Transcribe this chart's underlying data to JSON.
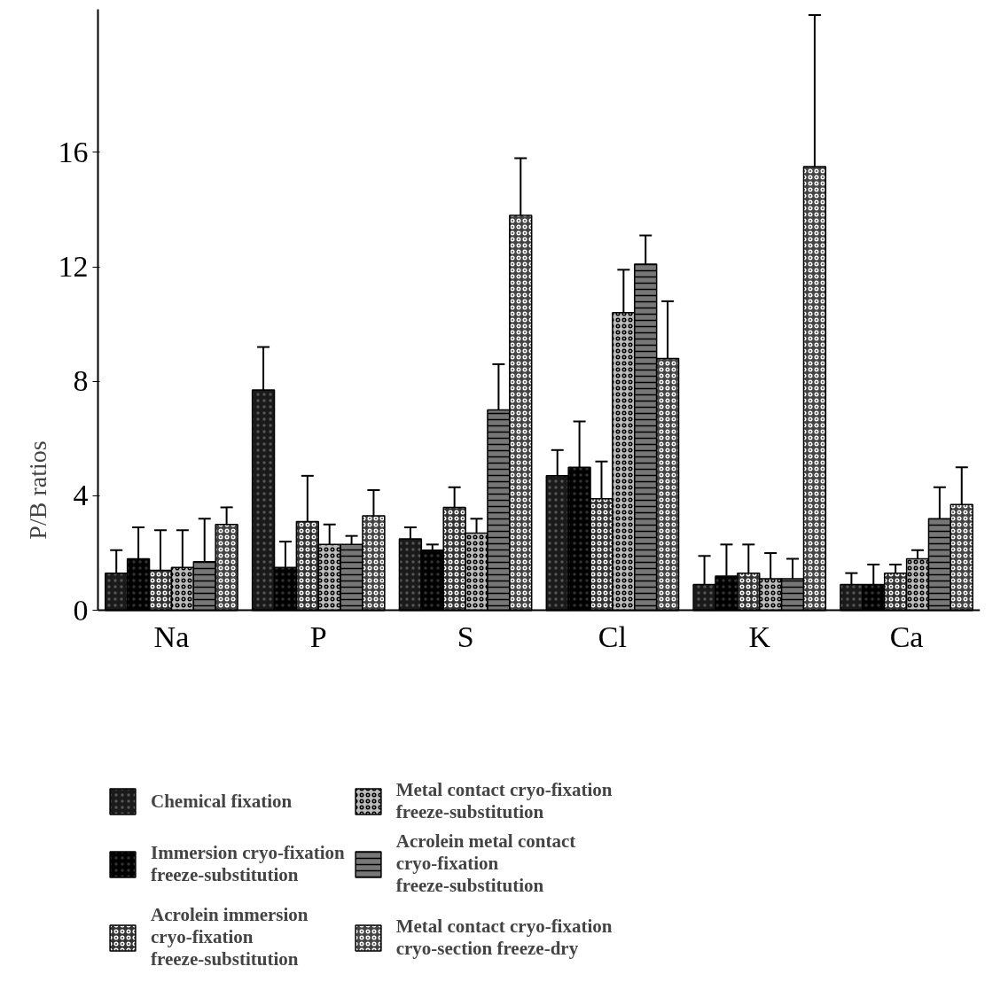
{
  "chart_data": {
    "type": "bar",
    "ylabel": "P/B ratios",
    "categories": [
      "Na",
      "P",
      "S",
      "Cl",
      "K",
      "Ca"
    ],
    "ylim": [
      0,
      21
    ],
    "yticks": [
      0,
      4,
      8,
      12,
      16
    ],
    "grid": false,
    "legend": "bottom",
    "series": [
      {
        "name": "Chemical fixation",
        "color": "#1a1a1a",
        "values": [
          1.3,
          7.7,
          2.5,
          4.7,
          0.9,
          0.9
        ],
        "errors": [
          [
            1.3,
            2.1
          ],
          [
            7.7,
            9.2
          ],
          [
            2.5,
            2.9
          ],
          [
            4.7,
            5.6
          ],
          [
            0.9,
            1.9
          ],
          [
            0.9,
            1.3
          ]
        ]
      },
      {
        "name": "Immersion cryo-fixation\nfreeze-substitution",
        "color": "#000000",
        "values": [
          1.8,
          1.5,
          2.1,
          5.0,
          1.2,
          0.9
        ],
        "errors": [
          [
            1.8,
            2.9
          ],
          [
            1.5,
            2.4
          ],
          [
            2.1,
            2.3
          ],
          [
            5.0,
            6.6
          ],
          [
            1.2,
            2.3
          ],
          [
            0.9,
            1.6
          ]
        ]
      },
      {
        "name": "Acrolein immersion\ncryo-fixation\nfreeze-substitution",
        "color": "#333333",
        "values": [
          1.4,
          3.1,
          3.6,
          3.9,
          1.3,
          1.3
        ],
        "errors": [
          [
            1.4,
            2.8
          ],
          [
            3.1,
            4.7
          ],
          [
            3.6,
            4.3
          ],
          [
            3.9,
            5.2
          ],
          [
            1.3,
            2.3
          ],
          [
            1.3,
            1.6
          ]
        ]
      },
      {
        "name": "Metal contact cryo-fixation\nfreeze-substitution",
        "color": "#bbbbbb",
        "values": [
          1.5,
          2.3,
          2.7,
          10.4,
          1.1,
          1.8
        ],
        "errors": [
          [
            1.5,
            2.8
          ],
          [
            2.3,
            3.0
          ],
          [
            2.7,
            3.2
          ],
          [
            10.4,
            11.9
          ],
          [
            1.1,
            2.0
          ],
          [
            1.8,
            2.1
          ]
        ]
      },
      {
        "name": "Acrolein metal contact\ncryo-fixation\nfreeze-substitution",
        "color": "#777777",
        "values": [
          1.7,
          2.3,
          7.0,
          12.1,
          1.1,
          3.2
        ],
        "errors": [
          [
            1.7,
            3.2
          ],
          [
            2.3,
            2.6
          ],
          [
            7.0,
            8.6
          ],
          [
            12.1,
            13.1
          ],
          [
            1.1,
            1.8
          ],
          [
            3.2,
            4.3
          ]
        ]
      },
      {
        "name": "Metal contact cryo-fixation\ncryo-section freeze-dry",
        "color": "#444444",
        "values": [
          3.0,
          3.3,
          13.8,
          8.8,
          15.5,
          3.7
        ],
        "errors": [
          [
            3.0,
            3.6
          ],
          [
            3.3,
            4.2
          ],
          [
            13.8,
            15.8
          ],
          [
            8.8,
            10.8
          ],
          [
            15.5,
            20.8
          ],
          [
            3.7,
            5.0
          ]
        ]
      }
    ]
  }
}
